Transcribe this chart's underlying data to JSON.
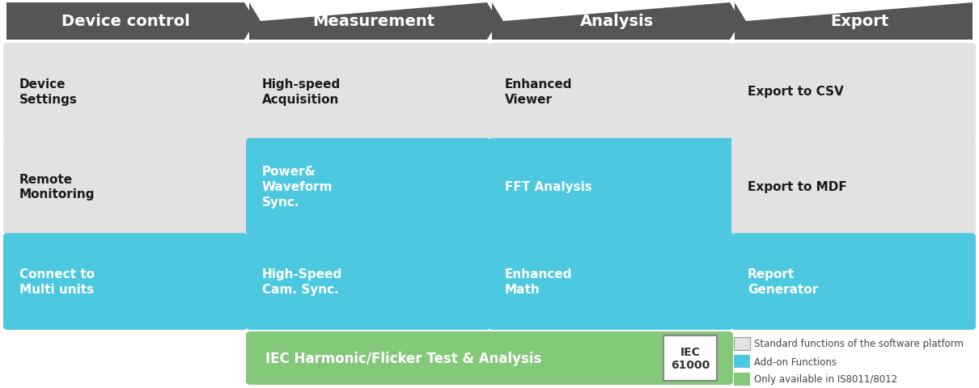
{
  "bg_color": "#ffffff",
  "header_bg": "#555555",
  "header_text_color": "#ffffff",
  "gray_box_color": "#e2e2e2",
  "blue_box_color": "#4cc8e0",
  "green_box_color": "#84c87a",
  "headers": [
    "Device control",
    "Measurement",
    "Analysis",
    "Export"
  ],
  "items": [
    {
      "col": 0,
      "row": 0,
      "label": "Device\nSettings",
      "color": "#e2e2e2",
      "text_color": "#1a1a1a",
      "bold": true
    },
    {
      "col": 0,
      "row": 1,
      "label": "Remote\nMonitoring",
      "color": "#e2e2e2",
      "text_color": "#1a1a1a",
      "bold": true
    },
    {
      "col": 0,
      "row": 2,
      "label": "Connect to\nMulti units",
      "color": "#4cc8e0",
      "text_color": "#ffffff",
      "bold": true
    },
    {
      "col": 1,
      "row": 0,
      "label": "High-speed\nAcquisition",
      "color": "#e2e2e2",
      "text_color": "#1a1a1a",
      "bold": true
    },
    {
      "col": 1,
      "row": 1,
      "label": "Power&\nWaveform\nSync.",
      "color": "#4cc8e0",
      "text_color": "#ffffff",
      "bold": true
    },
    {
      "col": 1,
      "row": 2,
      "label": "High-Speed\nCam. Sync.",
      "color": "#4cc8e0",
      "text_color": "#ffffff",
      "bold": true
    },
    {
      "col": 2,
      "row": 0,
      "label": "Enhanced\nViewer",
      "color": "#e2e2e2",
      "text_color": "#1a1a1a",
      "bold": true
    },
    {
      "col": 2,
      "row": 1,
      "label": "FFT Analysis",
      "color": "#4cc8e0",
      "text_color": "#ffffff",
      "bold": true
    },
    {
      "col": 2,
      "row": 2,
      "label": "Enhanced\nMath",
      "color": "#4cc8e0",
      "text_color": "#ffffff",
      "bold": true
    },
    {
      "col": 3,
      "row": 0,
      "label": "Export to CSV",
      "color": "#e2e2e2",
      "text_color": "#1a1a1a",
      "bold": true
    },
    {
      "col": 3,
      "row": 1,
      "label": "Export to MDF",
      "color": "#e2e2e2",
      "text_color": "#1a1a1a",
      "bold": true
    },
    {
      "col": 3,
      "row": 2,
      "label": "Report\nGenerator",
      "color": "#4cc8e0",
      "text_color": "#ffffff",
      "bold": true
    }
  ],
  "iec_text": "IEC Harmonic/Flicker Test & Analysis",
  "iec_label": "IEC\n61000",
  "legend": [
    {
      "color": "#e2e2e2",
      "label": "Standard functions of the software platform",
      "border": true
    },
    {
      "color": "#4cc8e0",
      "label": "Add-on Functions",
      "border": false
    },
    {
      "color": "#84c87a",
      "label": "Only available in IS8011/8012",
      "border": false
    }
  ]
}
